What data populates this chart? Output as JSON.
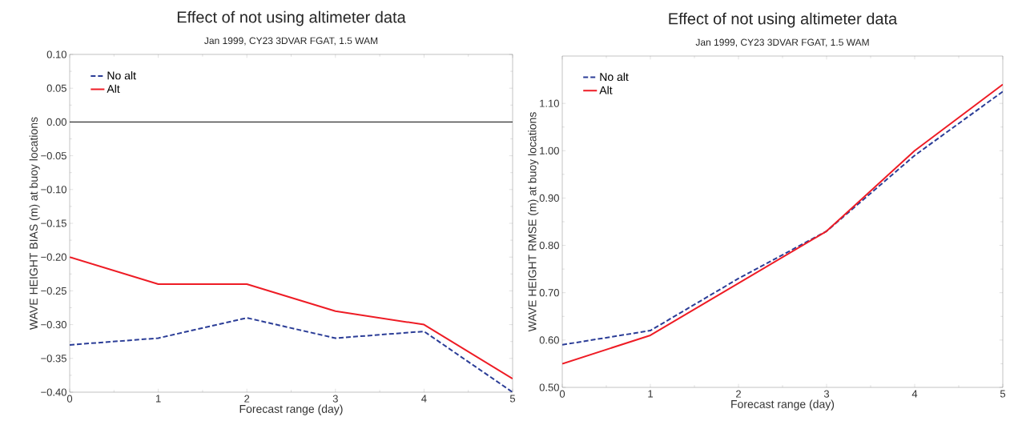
{
  "chart_data": [
    {
      "type": "line",
      "title": "Effect of not using altimeter data",
      "subtitle": "Jan 1999, CY23 3DVAR FGAT, 1.5 WAM",
      "xlabel": "Forecast range (day)",
      "ylabel": "WAVE HEIGHT BIAS (m) at buoy locations",
      "x": [
        0,
        1,
        2,
        3,
        4,
        5
      ],
      "xlim": [
        0,
        5
      ],
      "xticks": [
        0,
        1,
        2,
        3,
        4,
        5
      ],
      "ylim": [
        -0.4,
        0.1
      ],
      "yticks": [
        {
          "value": -0.4,
          "label": "−0.40"
        },
        {
          "value": -0.35,
          "label": "−0.35"
        },
        {
          "value": -0.3,
          "label": "−0.30"
        },
        {
          "value": -0.25,
          "label": "−0.25"
        },
        {
          "value": -0.2,
          "label": "−0.20"
        },
        {
          "value": -0.15,
          "label": "−0.15"
        },
        {
          "value": -0.1,
          "label": "−0.10"
        },
        {
          "value": -0.05,
          "label": "−0.05"
        },
        {
          "value": 0,
          "label": "0.00"
        },
        {
          "value": 0.05,
          "label": "0.05"
        },
        {
          "value": 0.1,
          "label": "0.10"
        }
      ],
      "legend": "top left",
      "ref_lines": [
        {
          "axis": "y",
          "value": 0,
          "color": "#222222"
        }
      ],
      "series": [
        {
          "name": "No alt",
          "color": "#2b3d97",
          "line_style": "dashed",
          "values": [
            -0.33,
            -0.32,
            -0.29,
            -0.32,
            -0.31,
            -0.4
          ]
        },
        {
          "name": "Alt",
          "color": "#ee1c25",
          "line_style": "solid",
          "values": [
            -0.2,
            -0.24,
            -0.24,
            -0.28,
            -0.3,
            -0.38
          ]
        }
      ]
    },
    {
      "type": "line",
      "title": "Effect of not using altimeter data",
      "subtitle": "Jan 1999, CY23 3DVAR FGAT, 1.5 WAM",
      "xlabel": "Forecast range (day)",
      "ylabel": "WAVE HEIGHT RMSE (m) at buoy locations",
      "x": [
        0,
        1,
        2,
        3,
        4,
        5
      ],
      "xlim": [
        0,
        5
      ],
      "xticks": [
        0,
        1,
        2,
        3,
        4,
        5
      ],
      "ylim": [
        0.5,
        1.2
      ],
      "yticks": [
        {
          "value": 0.5,
          "label": "0.50"
        },
        {
          "value": 0.6,
          "label": "0.60"
        },
        {
          "value": 0.7,
          "label": "0.70"
        },
        {
          "value": 0.8,
          "label": "0.80"
        },
        {
          "value": 0.9,
          "label": "0.90"
        },
        {
          "value": 1.0,
          "label": "1.00"
        },
        {
          "value": 1.1,
          "label": "1.10"
        }
      ],
      "legend": "top left",
      "series": [
        {
          "name": "No alt",
          "color": "#2b3d97",
          "line_style": "dashed",
          "values": [
            0.59,
            0.62,
            0.73,
            0.83,
            0.99,
            1.125
          ]
        },
        {
          "name": "Alt",
          "color": "#ee1c25",
          "line_style": "solid",
          "values": [
            0.55,
            0.61,
            0.72,
            0.83,
            1.0,
            1.14
          ]
        }
      ]
    }
  ]
}
